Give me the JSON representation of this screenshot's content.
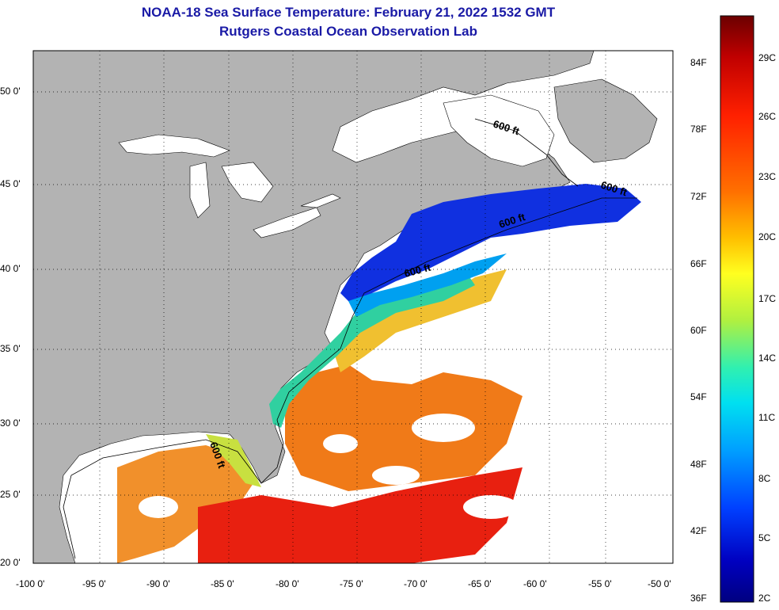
{
  "title": {
    "line1": "NOAA-18 Sea Surface Temperature:  February 21, 2022 1532 GMT",
    "line2": "Rutgers Coastal Ocean Observation Lab"
  },
  "map": {
    "lon_ticks": [
      "-100 0'",
      "-95 0'",
      "-90 0'",
      "-85 0'",
      "-80 0'",
      "-75 0'",
      "-70 0'",
      "-65 0'",
      "-60 0'",
      "-55 0'",
      "-50 0'"
    ],
    "lat_ticks": [
      "50 0'",
      "45 0'",
      "40 0'",
      "35 0'",
      "30 0'",
      "25 0'",
      "20 0'"
    ],
    "isobath_labels": [
      "600 ft",
      "600 ft",
      "600 ft",
      "600 ft",
      "600 ft"
    ],
    "land_color": "#b3b3b3",
    "nodata_color": "#ffffff"
  },
  "colorbar": {
    "fahrenheit_labels": [
      "84F",
      "78F",
      "72F",
      "66F",
      "60F",
      "54F",
      "48F",
      "42F",
      "36F"
    ],
    "celsius_labels": [
      "29C",
      "26C",
      "23C",
      "20C",
      "17C",
      "14C",
      "11C",
      "8C",
      "5C",
      "2C"
    ],
    "colors": [
      "#6b0000",
      "#c00000",
      "#ff2000",
      "#ff7000",
      "#ffc000",
      "#ffff20",
      "#b0f040",
      "#30f0b0",
      "#00e0f0",
      "#00a0ff",
      "#0040ff",
      "#0000c0",
      "#000080"
    ]
  }
}
